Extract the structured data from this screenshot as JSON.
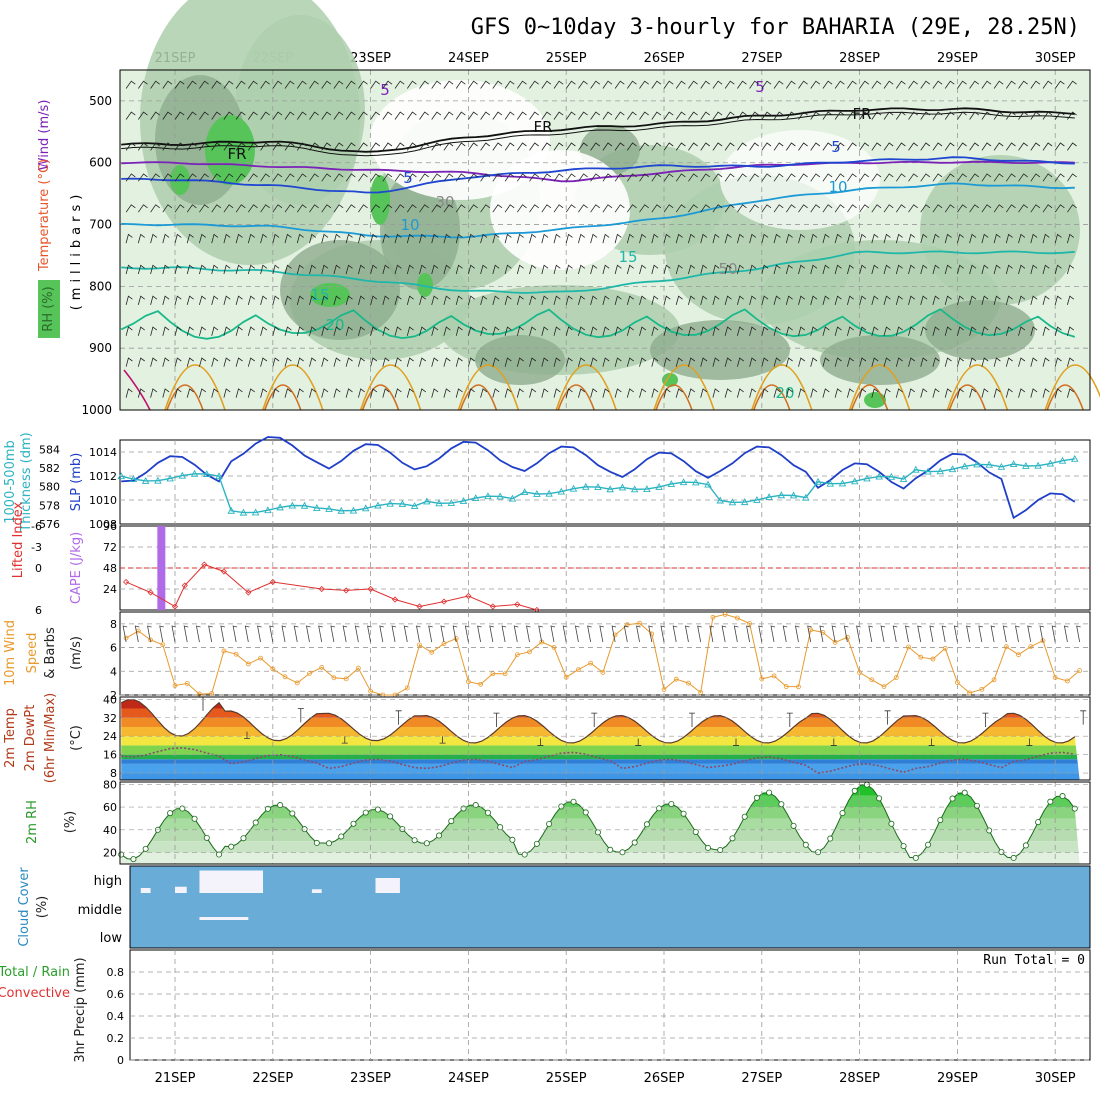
{
  "title": "GFS 0~10day 3-hourly for BAHARIA (29E, 28.25N)",
  "dates": [
    "21SEP",
    "22SEP",
    "23SEP",
    "24SEP",
    "25SEP",
    "26SEP",
    "27SEP",
    "28SEP",
    "29SEP",
    "30SEP"
  ],
  "colors": {
    "rh_light": "#e3f1e1",
    "rh_mid": "#aecfad",
    "rh_dark": "#8eac8e",
    "rh_green": "#57c45a",
    "slp": "#1f3fc8",
    "thickness": "#2bb3c1",
    "cape": "#b06ae8",
    "lifted": "#e03030",
    "wind10": "#e89a2e",
    "cloud": "#6aacd8",
    "grid": "#9a9a9a"
  },
  "labels": {
    "upper_axis": [
      "Wind (m/s)",
      "Temperature (°C)",
      "RH (%)"
    ],
    "upper_unit": "(millibars)",
    "slp_axis": [
      "1000-500mb",
      "Thickness (dm)",
      "SLP (mb)"
    ],
    "cape_axis": [
      "Lifted Index",
      "CAPE (J/kg)"
    ],
    "wind10_axis": [
      "10m Wind",
      "Speed",
      "& Barbs",
      "(m/s)"
    ],
    "temp_axis": [
      "2m Temp",
      "2m DewPt",
      "(6hr Min/Max)",
      "(°C)"
    ],
    "rh2m_axis": [
      "2m RH",
      "(%)"
    ],
    "cloud_axis": [
      "Cloud Cover",
      "(%)"
    ],
    "cloud_levels": [
      "high",
      "middle",
      "low"
    ],
    "precip_axis": [
      "Total / Rain",
      "Convective",
      "3hr Precip (mm)"
    ],
    "run_total": "Run Total = 0"
  },
  "chart_data": [
    {
      "type": "contour",
      "panel": "upper-air cross-section",
      "y_axis": "pressure (millibars)",
      "yticks": [
        500,
        600,
        700,
        800,
        900,
        1000
      ],
      "contour_labels": [
        "5",
        "FR",
        "-5",
        "10",
        "15",
        "20",
        "30",
        "50"
      ],
      "isotherm_-5": [
        600,
        606,
        612,
        616,
        630,
        616,
        604,
        600,
        599,
        600
      ],
      "isotherm_0": [
        570,
        565,
        585,
        558,
        545,
        537,
        524,
        514,
        513,
        520
      ],
      "isotherm_5": [
        627,
        637,
        650,
        623,
        612,
        605,
        606,
        597,
        592,
        600
      ],
      "isotherm_10": [
        700,
        703,
        718,
        720,
        707,
        690,
        660,
        643,
        634,
        640
      ],
      "isotherm_15": [
        770,
        776,
        790,
        808,
        810,
        790,
        770,
        745,
        745,
        745
      ]
    },
    {
      "type": "line",
      "panel": "SLP and thickness",
      "x": [
        "21SEP",
        "22SEP",
        "23SEP",
        "24SEP",
        "25SEP",
        "26SEP",
        "27SEP",
        "28SEP",
        "29SEP",
        "30SEP"
      ],
      "series": [
        {
          "name": "SLP (mb)",
          "values": [
            1012.6,
            1014.2,
            1013.6,
            1013.8,
            1013.4,
            1012.9,
            1013.4,
            1012.0,
            1012.8,
            1009.5
          ]
        },
        {
          "name": "1000-500mb Thickness (dm)",
          "values": [
            581.0,
            577.6,
            577.8,
            578.6,
            579.6,
            580.1,
            578.7,
            580.7,
            582.0,
            582.6
          ]
        }
      ],
      "ylim_slp": [
        1008,
        1015
      ],
      "ylim_thickness": [
        576,
        585
      ]
    },
    {
      "type": "bar",
      "panel": "CAPE and Lifted Index",
      "cape_bar": {
        "day": 0.35,
        "value": 96
      },
      "lifted_index": [
        [
          0.0,
          2.0
        ],
        [
          0.25,
          3.5
        ],
        [
          0.5,
          5.5
        ],
        [
          0.6,
          2.5
        ],
        [
          0.8,
          -0.5
        ],
        [
          1.0,
          0.5
        ],
        [
          1.25,
          3.5
        ],
        [
          1.5,
          2.0
        ],
        [
          2.0,
          3.0
        ],
        [
          2.25,
          3.2
        ],
        [
          2.5,
          3.0
        ],
        [
          2.75,
          4.5
        ],
        [
          3.0,
          5.5
        ],
        [
          3.25,
          4.8
        ],
        [
          3.5,
          4.0
        ],
        [
          3.75,
          5.5
        ],
        [
          4.0,
          5.2
        ],
        [
          4.2,
          6.0
        ]
      ],
      "yticks_li": [
        6,
        0,
        -3,
        -6
      ],
      "yticks_cape": [
        24,
        48,
        72,
        96
      ]
    },
    {
      "type": "line",
      "panel": "10m Wind",
      "series": [
        {
          "name": "10m Wind Speed (m/s)",
          "values": [
            6.8,
            2.5,
            5.2,
            3.6,
            3.8,
            2.0,
            6.2,
            3.4,
            5.9,
            4.1,
            7.6,
            2.8,
            8.6,
            3.1,
            7.0,
            3.3,
            5.5,
            2.7,
            6.0,
            3.7
          ]
        }
      ],
      "ylim": [
        2,
        9
      ],
      "yticks": [
        2,
        4,
        6,
        8
      ]
    },
    {
      "type": "area",
      "panel": "2m Temperature",
      "series": [
        {
          "name": "2m Temp max (°C)",
          "values": [
            40,
            35,
            34,
            33,
            33,
            33,
            33,
            34,
            33,
            34
          ]
        },
        {
          "name": "2m Temp min (°C)",
          "values": [
            24,
            22,
            22,
            21,
            21,
            21,
            21,
            21,
            21,
            21
          ]
        },
        {
          "name": "2m DewPt (°C)",
          "values": [
            17,
            14,
            12,
            12,
            15,
            12,
            13,
            10,
            12,
            15
          ]
        }
      ],
      "ylim": [
        5,
        41
      ],
      "yticks": [
        8,
        16,
        24,
        32,
        40
      ]
    },
    {
      "type": "area",
      "panel": "2m RH",
      "series": [
        {
          "name": "2m RH max (%)",
          "values": [
            59,
            62,
            58,
            62,
            65,
            63,
            73,
            80,
            73,
            70
          ]
        },
        {
          "name": "2m RH min (%)",
          "values": [
            14,
            25,
            28,
            28,
            18,
            20,
            22,
            20,
            15,
            15
          ]
        }
      ],
      "ylim": [
        10,
        82
      ],
      "yticks": [
        20,
        40,
        60,
        80
      ]
    },
    {
      "type": "heatmap",
      "panel": "Cloud Cover",
      "levels": [
        "high",
        "middle",
        "low"
      ],
      "high_cloud_segments": [
        [
          0.15,
          0.25,
          20
        ],
        [
          0.5,
          0.62,
          25
        ],
        [
          0.75,
          1.4,
          90
        ],
        [
          1.9,
          2.0,
          15
        ],
        [
          2.55,
          2.8,
          60
        ]
      ],
      "middle_cloud_segments": [
        [
          0.75,
          1.25,
          10
        ]
      ]
    },
    {
      "type": "bar",
      "panel": "3hr Precip",
      "values": [],
      "ylim": [
        0,
        1
      ],
      "yticks": [
        0,
        0.2,
        0.4,
        0.6,
        0.8
      ]
    }
  ]
}
